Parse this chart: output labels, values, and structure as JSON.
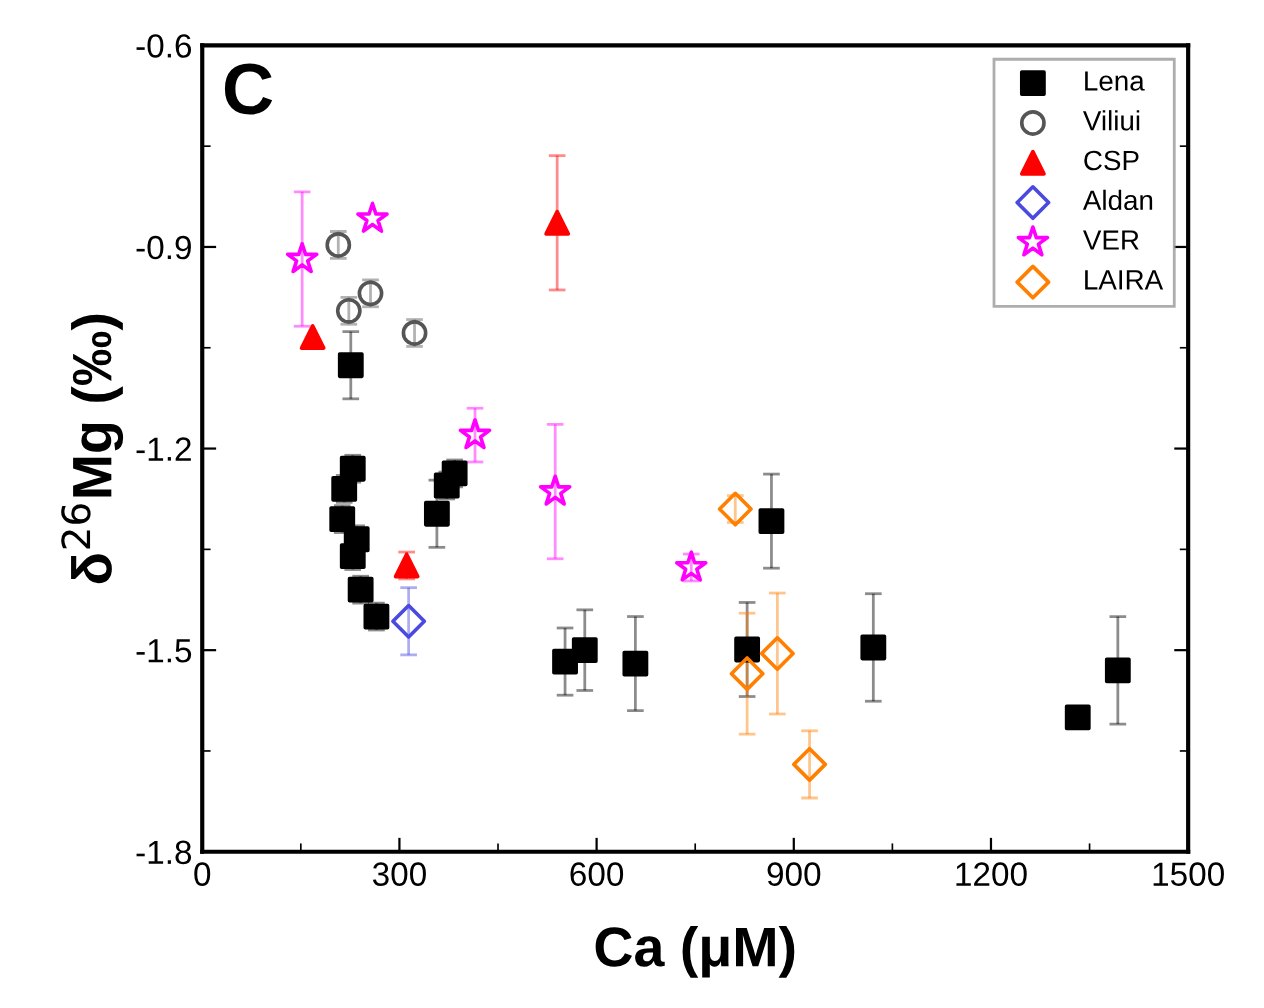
{
  "chart_data": {
    "type": "scatter",
    "xlabel": "Ca (μM)",
    "ylabel": "δ$^{26}$Mg (‰)",
    "annotations": [
      "C"
    ],
    "xlim": [
      0,
      1500
    ],
    "xticks": [
      0,
      300,
      600,
      900,
      1200,
      1500
    ],
    "ylim": [
      -1.8,
      -0.6
    ],
    "yticks": [
      -1.8,
      -1.5,
      -1.2,
      -0.9,
      -0.6
    ],
    "grid": false,
    "legend": "top right",
    "series": [
      {
        "name": "Lena",
        "color": "#000000",
        "marker": "square",
        "x": [
          226,
          229,
          216,
          213,
          235,
          229,
          241,
          265,
          357,
          372,
          384,
          552,
          582,
          659,
          866,
          829,
          1021,
          1332,
          1393
        ],
        "values": [
          -1.076,
          -1.23,
          -1.26,
          -1.305,
          -1.335,
          -1.36,
          -1.41,
          -1.45,
          -1.297,
          -1.255,
          -1.237,
          -1.517,
          -1.5,
          -1.52,
          -1.308,
          -1.499,
          -1.496,
          -1.6,
          -1.53
        ],
        "errors": [
          0.05,
          0.02,
          0.02,
          0.02,
          0.02,
          0.02,
          0.02,
          0.02,
          0.05,
          0.02,
          0.02,
          0.05,
          0.06,
          0.07,
          0.07,
          0.07,
          0.08,
          null,
          0.08
        ]
      },
      {
        "name": "Viliui",
        "color": "#555555",
        "marker": "circle",
        "x": [
          207,
          223,
          256,
          323
        ],
        "values": [
          -0.897,
          -0.995,
          -0.969,
          -1.028
        ],
        "errors": [
          0.02,
          0.02,
          0.02,
          0.02
        ]
      },
      {
        "name": "CSP",
        "color": "#ff0000",
        "marker": "triangle",
        "x": [
          168,
          540,
          311
        ],
        "values": [
          -1.034,
          -0.864,
          -1.374
        ],
        "errors": [
          null,
          0.1,
          0.02
        ]
      },
      {
        "name": "Aldan",
        "color": "#4a4ae0",
        "marker": "diamond",
        "x": [
          314
        ],
        "values": [
          -1.457
        ],
        "errors": [
          0.05
        ]
      },
      {
        "name": "VER",
        "color": "#ff00ff",
        "marker": "star",
        "x": [
          152,
          259,
          415,
          537,
          744
        ],
        "values": [
          -0.918,
          -0.858,
          -1.18,
          -1.264,
          -1.377
        ],
        "errors": [
          0.1,
          null,
          0.04,
          0.1,
          0.02
        ]
      },
      {
        "name": "LAIRA",
        "color": "#ff7f00",
        "marker": "diamond",
        "x": [
          811,
          829,
          875,
          924
        ],
        "values": [
          -1.29,
          -1.535,
          -1.505,
          -1.67
        ],
        "errors": [
          0.02,
          0.09,
          0.09,
          0.05
        ]
      }
    ]
  }
}
